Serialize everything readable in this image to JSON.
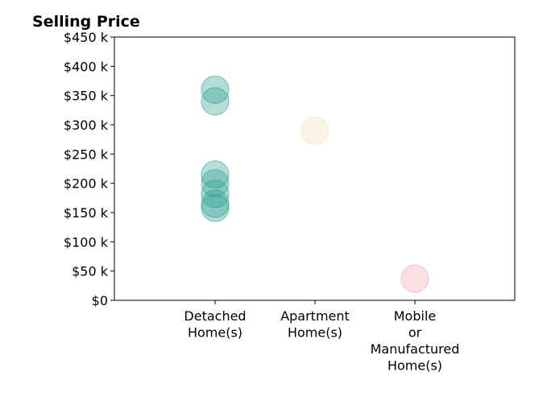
{
  "chart_data": {
    "type": "scatter",
    "title": "Selling Price",
    "xlabel": "",
    "ylabel": "",
    "categories": [
      [
        "Detached",
        "Home(s)"
      ],
      [
        "Apartment",
        "Home(s)"
      ],
      [
        "Mobile",
        "or",
        "Manufactured",
        "Home(s)"
      ]
    ],
    "ylim": [
      0,
      450000
    ],
    "yticks": [
      0,
      50000,
      100000,
      150000,
      200000,
      250000,
      300000,
      350000,
      400000,
      450000
    ],
    "ytick_labels": [
      "$0",
      "$50 k",
      "$100 k",
      "$150 k",
      "$200 k",
      "$250 k",
      "$300 k",
      "$350 k",
      "$400 k",
      "$450 k"
    ],
    "grid": false,
    "legend": "none",
    "series": [
      {
        "category": 0,
        "color": "#2a9d8f",
        "values": [
          360000,
          340000,
          215000,
          200000,
          182000,
          165000,
          158000
        ]
      },
      {
        "category": 1,
        "color": "#f4e2b8",
        "values": [
          290000
        ]
      },
      {
        "category": 2,
        "color": "#f4a3ab",
        "values": [
          37000
        ]
      }
    ]
  }
}
